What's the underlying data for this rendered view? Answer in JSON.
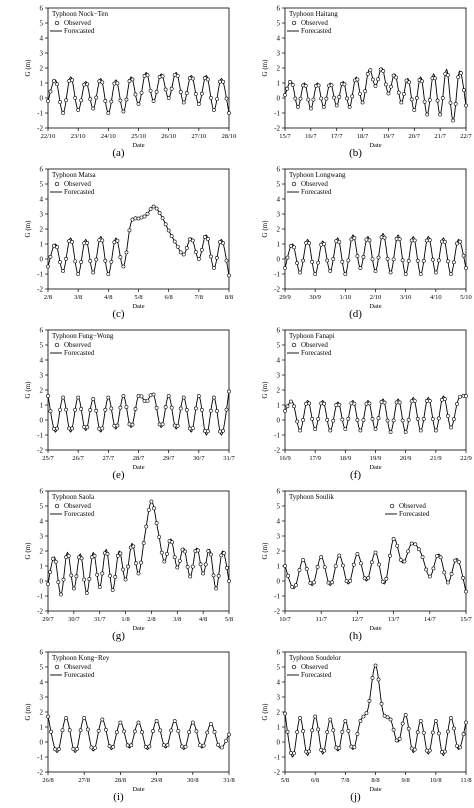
{
  "common": {
    "ylabel": "G (m)",
    "xlabel": "Date",
    "legend": [
      "Observed",
      "Forecasted"
    ],
    "y_ticks": [
      "-2",
      "-1",
      "0",
      "1",
      "2",
      "3",
      "4",
      "5",
      "6"
    ]
  },
  "chart_data": [
    {
      "type": "line",
      "title": "Typhoon Nock−Ten",
      "letter": "(a)",
      "xlabel": "Date",
      "ylabel": "G (m)",
      "ylim": [
        -2,
        6
      ],
      "x_ticks": [
        "22/10",
        "23/10",
        "24/10",
        "25/10",
        "26/10",
        "27/10",
        "28/10"
      ],
      "legend_position": "top-left",
      "series": [
        {
          "name": "Observed",
          "marker": "circle",
          "days": [
            0.0,
            0.25,
            0.5,
            0.75,
            1.0,
            1.25,
            1.5,
            1.75,
            2.0,
            2.25,
            2.5,
            2.75,
            3.0,
            3.25,
            3.5,
            3.75,
            4.0,
            4.25,
            4.5,
            4.75,
            5.0,
            5.25,
            5.5,
            5.75,
            6.0
          ],
          "values": [
            -0.2,
            1.2,
            -1.0,
            1.4,
            -0.8,
            1.1,
            -0.7,
            1.3,
            -1.0,
            1.2,
            -0.9,
            1.4,
            -0.4,
            1.7,
            -0.2,
            1.6,
            0.0,
            1.7,
            -0.3,
            1.5,
            -0.4,
            1.5,
            -0.8,
            1.3,
            -1.0
          ]
        },
        {
          "name": "Forecasted",
          "style": "line",
          "same_as": "Observed"
        }
      ]
    },
    {
      "type": "line",
      "title": "Typhoon Haitang",
      "letter": "(b)",
      "xlabel": "Date",
      "ylabel": "G (m)",
      "ylim": [
        -2,
        6
      ],
      "x_ticks": [
        "15/7",
        "16/7",
        "17/7",
        "18/7",
        "19/7",
        "20/7",
        "21/7",
        "22/7"
      ],
      "legend_position": "top-left",
      "series": [
        {
          "name": "Observed",
          "marker": "circle",
          "days": [
            0.0,
            0.25,
            0.5,
            0.75,
            1.0,
            1.25,
            1.5,
            1.75,
            2.0,
            2.25,
            2.5,
            2.75,
            3.0,
            3.25,
            3.5,
            3.75,
            4.0,
            4.25,
            4.5,
            4.75,
            5.0,
            5.25,
            5.5,
            5.75,
            6.0,
            6.25,
            6.5,
            6.75,
            7.0
          ],
          "values": [
            0.2,
            1.1,
            -0.6,
            1.0,
            -0.7,
            1.0,
            -0.6,
            1.0,
            -0.5,
            1.1,
            -0.6,
            1.4,
            -0.3,
            1.9,
            0.8,
            2.0,
            0.3,
            1.6,
            -0.3,
            1.3,
            -0.8,
            1.4,
            -1.1,
            1.6,
            -1.1,
            1.9,
            -1.5,
            1.8,
            -0.5
          ]
        },
        {
          "name": "Forecasted",
          "style": "line",
          "same_as": "Observed"
        }
      ]
    },
    {
      "type": "line",
      "title": "Typhoon Matsa",
      "letter": "(c)",
      "xlabel": "Date",
      "ylabel": "G (m)",
      "ylim": [
        -2,
        6
      ],
      "x_ticks": [
        "2/8",
        "3/8",
        "4/8",
        "5/8",
        "6/8",
        "7/8",
        "8/8"
      ],
      "legend_position": "top-left",
      "series": [
        {
          "name": "Observed",
          "marker": "circle",
          "days": [
            0.0,
            0.25,
            0.5,
            0.75,
            1.0,
            1.25,
            1.5,
            1.75,
            2.0,
            2.25,
            2.5,
            2.75,
            3.0,
            3.25,
            3.5,
            3.75,
            4.0,
            4.25,
            4.5,
            4.75,
            5.0,
            5.25,
            5.5,
            5.75,
            6.0
          ],
          "values": [
            -0.5,
            1.0,
            -0.8,
            1.4,
            -1.0,
            1.3,
            -0.9,
            1.5,
            -1.0,
            1.4,
            -0.5,
            2.4,
            2.7,
            2.9,
            3.5,
            2.9,
            1.9,
            1.0,
            0.3,
            1.4,
            0.0,
            1.6,
            -0.6,
            1.3,
            -1.1
          ]
        },
        {
          "name": "Forecasted",
          "style": "line",
          "same_as": "Observed"
        }
      ]
    },
    {
      "type": "line",
      "title": "Typhoon Longwang",
      "letter": "(d)",
      "xlabel": "Date",
      "ylabel": "G (m)",
      "ylim": [
        -2,
        6
      ],
      "x_ticks": [
        "29/9",
        "30/9",
        "1/10",
        "2/10",
        "3/10",
        "4/10",
        "5/10"
      ],
      "legend_position": "top-left",
      "series": [
        {
          "name": "Observed",
          "marker": "circle",
          "days": [
            0.0,
            0.25,
            0.5,
            0.75,
            1.0,
            1.25,
            1.5,
            1.75,
            2.0,
            2.25,
            2.5,
            2.75,
            3.0,
            3.25,
            3.5,
            3.75,
            4.0,
            4.25,
            4.5,
            4.75,
            5.0,
            5.25,
            5.5,
            5.75,
            6.0
          ],
          "values": [
            -0.6,
            1.0,
            -0.9,
            1.3,
            -1.0,
            1.2,
            -0.8,
            1.4,
            -1.0,
            1.6,
            -0.6,
            1.5,
            -0.8,
            1.7,
            -0.9,
            1.6,
            -1.0,
            1.5,
            -1.0,
            1.5,
            -0.9,
            1.4,
            -1.0,
            1.3,
            -0.6
          ]
        },
        {
          "name": "Forecasted",
          "style": "line",
          "same_as": "Observed"
        }
      ]
    },
    {
      "type": "line",
      "title": "Typhoon Fung−Wong",
      "letter": "(e)",
      "xlabel": "Date",
      "ylabel": "G (m)",
      "ylim": [
        -2,
        6
      ],
      "x_ticks": [
        "25/7",
        "26/7",
        "27/7",
        "28/7",
        "29/7",
        "30/7",
        "31/7"
      ],
      "legend_position": "top-left",
      "series": [
        {
          "name": "Observed",
          "marker": "circle",
          "days": [
            0.0,
            0.25,
            0.5,
            0.75,
            1.0,
            1.25,
            1.5,
            1.75,
            2.0,
            2.25,
            2.5,
            2.75,
            3.0,
            3.25,
            3.5,
            3.75,
            4.0,
            4.25,
            4.5,
            4.75,
            5.0,
            5.25,
            5.5,
            5.75,
            6.0
          ],
          "values": [
            1.6,
            -0.8,
            1.5,
            -0.8,
            1.5,
            -0.7,
            1.4,
            -0.8,
            1.5,
            -0.6,
            1.6,
            -0.5,
            1.6,
            1.2,
            1.7,
            -0.5,
            1.6,
            -0.6,
            1.5,
            -0.8,
            1.6,
            -1.0,
            1.5,
            -1.0,
            1.9
          ]
        },
        {
          "name": "Forecasted",
          "style": "line",
          "same_as": "Observed"
        }
      ]
    },
    {
      "type": "line",
      "title": "Typhoon Fanapi",
      "letter": "(f)",
      "xlabel": "Date",
      "ylabel": "G (m)",
      "ylim": [
        -2,
        6
      ],
      "x_ticks": [
        "16/9",
        "17/9",
        "18/9",
        "19/9",
        "20/9",
        "21/9",
        "22/9"
      ],
      "legend_position": "top-left",
      "series": [
        {
          "name": "Observed",
          "marker": "circle",
          "days": [
            0.0,
            0.25,
            0.5,
            0.75,
            1.0,
            1.25,
            1.5,
            1.75,
            2.0,
            2.25,
            2.5,
            2.75,
            3.0,
            3.25,
            3.5,
            3.75,
            4.0,
            4.25,
            4.5,
            4.75,
            5.0,
            5.25,
            5.5,
            5.75,
            6.0
          ],
          "values": [
            0.6,
            1.2,
            -0.7,
            1.3,
            -0.6,
            1.3,
            -0.7,
            1.2,
            -0.6,
            1.3,
            -0.7,
            1.3,
            -0.6,
            1.4,
            -0.8,
            1.4,
            -0.8,
            1.5,
            -0.7,
            1.5,
            -0.7,
            1.6,
            -0.5,
            1.4,
            1.6
          ]
        },
        {
          "name": "Forecasted",
          "style": "line",
          "same_as": "Observed"
        }
      ]
    },
    {
      "type": "line",
      "title": "Typhoon Saola",
      "letter": "(g)",
      "xlabel": "Date",
      "ylabel": "G (m)",
      "ylim": [
        -2,
        6
      ],
      "x_ticks": [
        "29/7",
        "30/7",
        "31/7",
        "1/8",
        "2/8",
        "3/8",
        "4/8",
        "5/8"
      ],
      "legend_position": "top-left",
      "series": [
        {
          "name": "Observed",
          "marker": "circle",
          "days": [
            0.0,
            0.25,
            0.5,
            0.75,
            1.0,
            1.25,
            1.5,
            1.75,
            2.0,
            2.25,
            2.5,
            2.75,
            3.0,
            3.25,
            3.5,
            3.75,
            4.0,
            4.25,
            4.5,
            4.75,
            5.0,
            5.25,
            5.5,
            5.75,
            6.0,
            6.25,
            6.5,
            6.75,
            7.0
          ],
          "values": [
            -0.2,
            1.6,
            -0.9,
            1.9,
            -0.5,
            1.8,
            -0.8,
            1.9,
            -0.4,
            2.1,
            -0.6,
            2.0,
            0.1,
            2.5,
            0.5,
            3.1,
            5.3,
            3.4,
            1.3,
            2.8,
            0.9,
            2.2,
            0.3,
            2.2,
            0.5,
            2.1,
            -0.5,
            2.0,
            0.0
          ]
        },
        {
          "name": "Forecasted",
          "style": "line",
          "same_as": "Observed"
        }
      ]
    },
    {
      "type": "line",
      "title": "Typhoon Soulik",
      "letter": "(h)",
      "xlabel": "Date",
      "ylabel": "G (m)",
      "ylim": [
        -2,
        6
      ],
      "x_ticks": [
        "10/7",
        "11/7",
        "12/7",
        "13/7",
        "14/7",
        "15/7"
      ],
      "legend_position": "top-right",
      "series": [
        {
          "name": "Observed",
          "marker": "circle",
          "days": [
            0.0,
            0.25,
            0.5,
            0.75,
            1.0,
            1.25,
            1.5,
            1.75,
            2.0,
            2.25,
            2.5,
            2.75,
            3.0,
            3.25,
            3.5,
            3.75,
            4.0,
            4.25,
            4.5,
            4.75,
            5.0
          ],
          "values": [
            1.0,
            -0.5,
            1.4,
            -0.3,
            1.6,
            -0.3,
            1.7,
            -0.2,
            1.8,
            0.0,
            1.9,
            -0.2,
            2.8,
            1.2,
            2.5,
            1.9,
            0.3,
            1.8,
            -0.1,
            1.5,
            -0.7
          ]
        },
        {
          "name": "Forecasted",
          "style": "line",
          "same_as": "Observed"
        }
      ]
    },
    {
      "type": "line",
      "title": "Typhoon Kong−Rey",
      "letter": "(i)",
      "xlabel": "Date",
      "ylabel": "G (m)",
      "ylim": [
        -2,
        6
      ],
      "x_ticks": [
        "26/8",
        "27/8",
        "28/8",
        "29/8",
        "30/8",
        "31/8"
      ],
      "legend_position": "top-left",
      "series": [
        {
          "name": "Observed",
          "marker": "circle",
          "days": [
            0.0,
            0.25,
            0.5,
            0.75,
            1.0,
            1.25,
            1.5,
            1.75,
            2.0,
            2.25,
            2.5,
            2.75,
            3.0,
            3.25,
            3.5,
            3.75,
            4.0,
            4.25,
            4.5,
            4.75,
            5.0
          ],
          "values": [
            1.7,
            -0.7,
            1.6,
            -0.7,
            1.6,
            -0.6,
            1.5,
            -0.5,
            1.3,
            -0.4,
            1.3,
            -0.5,
            1.4,
            -0.4,
            1.4,
            -0.5,
            1.3,
            -0.4,
            1.2,
            -0.4,
            0.5
          ]
        },
        {
          "name": "Forecasted",
          "style": "line",
          "same_as": "Observed"
        }
      ]
    },
    {
      "type": "line",
      "title": "Typhoon Soudelor",
      "letter": "(j)",
      "xlabel": "Date",
      "ylabel": "G (m)",
      "ylim": [
        -2,
        6
      ],
      "x_ticks": [
        "5/8",
        "6/8",
        "7/8",
        "8/8",
        "9/8",
        "10/8",
        "11/8"
      ],
      "legend_position": "top-left",
      "series": [
        {
          "name": "Observed",
          "marker": "circle",
          "days": [
            0.0,
            0.25,
            0.5,
            0.75,
            1.0,
            1.25,
            1.5,
            1.75,
            2.0,
            2.25,
            2.5,
            2.75,
            3.0,
            3.25,
            3.5,
            3.75,
            4.0,
            4.25,
            4.5,
            4.75,
            5.0,
            5.25,
            5.5,
            5.75,
            6.0
          ],
          "values": [
            1.9,
            -1.0,
            1.6,
            -0.9,
            1.7,
            -0.8,
            1.5,
            -0.6,
            1.4,
            -0.5,
            1.4,
            2.2,
            5.1,
            2.0,
            1.5,
            0.0,
            1.8,
            -0.7,
            1.4,
            -0.8,
            1.4,
            -0.9,
            1.6,
            -0.5,
            1.3
          ]
        },
        {
          "name": "Forecasted",
          "style": "line",
          "same_as": "Observed"
        }
      ]
    }
  ]
}
